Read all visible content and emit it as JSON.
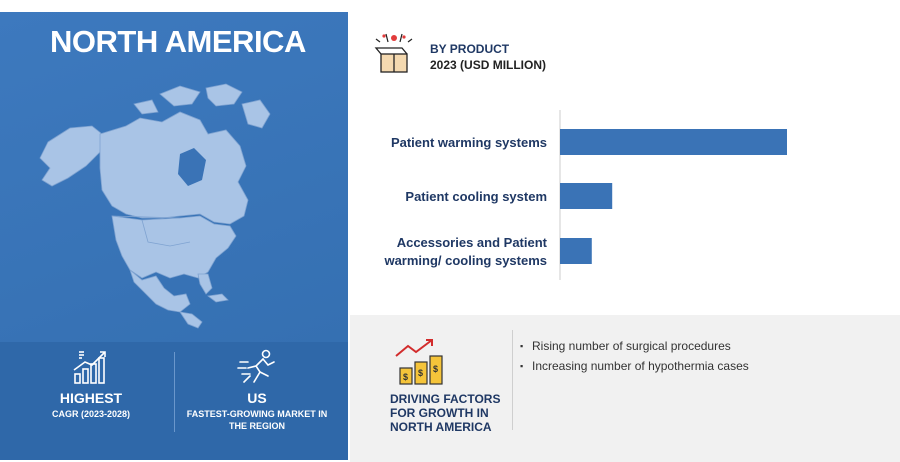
{
  "region": {
    "title": "NORTH AMERICA"
  },
  "stats": [
    {
      "main": "HIGHEST",
      "sub": "CAGR (2023-2028)",
      "icon": "growth-chart-icon"
    },
    {
      "main": "US",
      "sub": "FASTEST-GROWING MARKET IN THE REGION",
      "icon": "runner-icon"
    }
  ],
  "product": {
    "title": "BY PRODUCT",
    "subtitle": "2023 (USD MILLION)",
    "icon": "gift-box-icon"
  },
  "chart_data": {
    "type": "bar",
    "orientation": "horizontal",
    "categories": [
      "Patient warming systems",
      "Patient cooling system",
      "Accessories and Patient warming/ cooling systems"
    ],
    "category_lines": [
      [
        "Patient warming systems"
      ],
      [
        "Patient cooling system"
      ],
      [
        "Accessories and Patient",
        "warming/ cooling systems"
      ]
    ],
    "values": [
      100,
      23,
      14
    ],
    "title": "BY PRODUCT",
    "grid": false,
    "bar_color": "#3a73b6"
  },
  "drivers": {
    "title": "DRIVING FACTORS FOR GROWTH IN NORTH AMERICA",
    "items": [
      "Rising number of surgical procedures",
      "Increasing number of hypothermia cases"
    ],
    "icon": "money-growth-icon"
  },
  "colors": {
    "accent": "#3a73b6",
    "dark_text": "#1f3864"
  }
}
